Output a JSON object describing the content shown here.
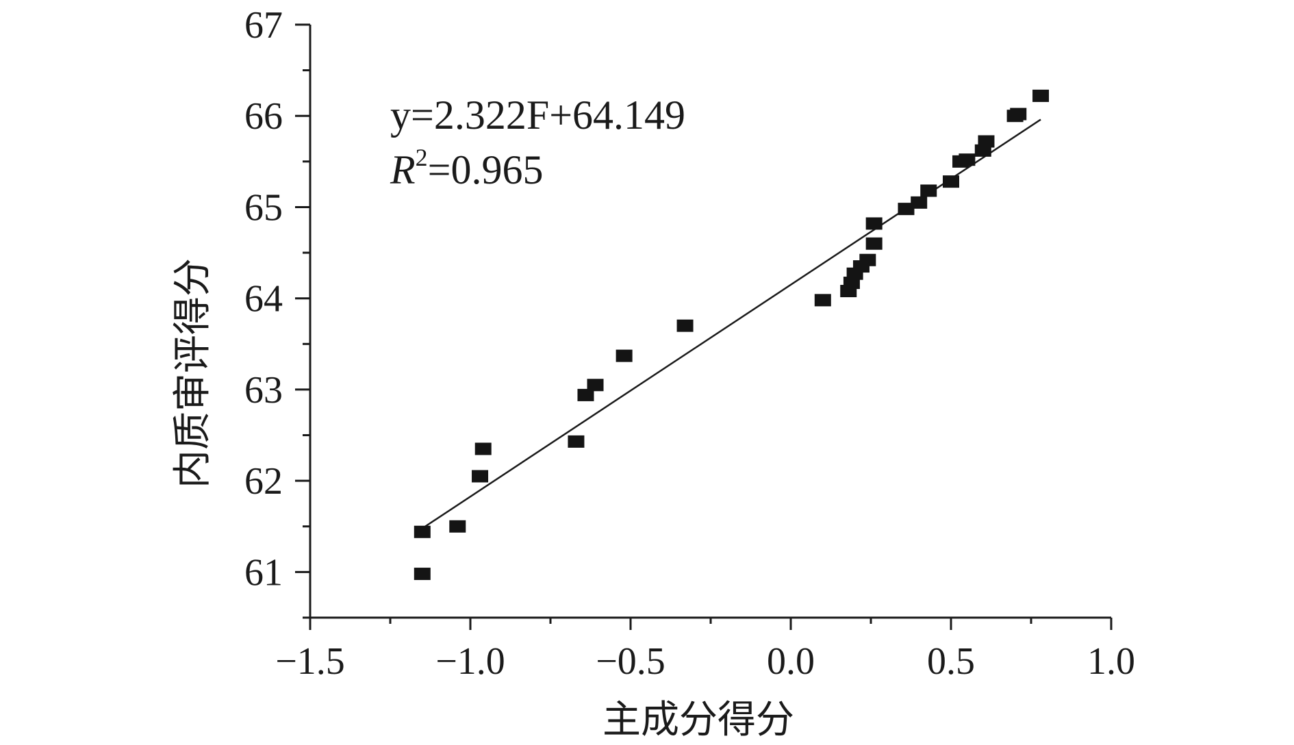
{
  "chart_data": {
    "type": "scatter",
    "title": "",
    "xlabel": "主成分得分",
    "ylabel": "内质审评得分",
    "xlim": [
      -1.5,
      1.0
    ],
    "ylim": [
      60.5,
      67
    ],
    "x_ticks": [
      -1.5,
      -1.0,
      -0.5,
      0.0,
      0.5,
      1.0
    ],
    "x_tick_labels": [
      "−1.5",
      "−1.0",
      "−0.5",
      "0.0",
      "0.5",
      "1.0"
    ],
    "y_ticks": [
      61,
      62,
      63,
      64,
      65,
      66,
      67
    ],
    "y_tick_labels": [
      "61",
      "62",
      "63",
      "64",
      "65",
      "66",
      "67"
    ],
    "grid": false,
    "marker": "square",
    "marker_color": "#141414",
    "equation_text": "y=2.322F+64.149",
    "r2_label": "R",
    "r2_sup": "2",
    "r2_value": "=0.965",
    "fit": {
      "slope": 2.322,
      "intercept": 64.149,
      "x_range": [
        -1.15,
        0.78
      ]
    },
    "points": [
      {
        "x": -1.15,
        "y": 61.44
      },
      {
        "x": -1.15,
        "y": 60.98
      },
      {
        "x": -1.04,
        "y": 61.5
      },
      {
        "x": -0.97,
        "y": 62.05
      },
      {
        "x": -0.96,
        "y": 62.35
      },
      {
        "x": -0.67,
        "y": 62.43
      },
      {
        "x": -0.64,
        "y": 62.94
      },
      {
        "x": -0.61,
        "y": 63.05
      },
      {
        "x": -0.52,
        "y": 63.37
      },
      {
        "x": -0.33,
        "y": 63.7
      },
      {
        "x": 0.1,
        "y": 63.98
      },
      {
        "x": 0.18,
        "y": 64.08
      },
      {
        "x": 0.19,
        "y": 64.17
      },
      {
        "x": 0.2,
        "y": 64.27
      },
      {
        "x": 0.22,
        "y": 64.35
      },
      {
        "x": 0.24,
        "y": 64.42
      },
      {
        "x": 0.26,
        "y": 64.6
      },
      {
        "x": 0.26,
        "y": 64.82
      },
      {
        "x": 0.36,
        "y": 64.98
      },
      {
        "x": 0.4,
        "y": 65.05
      },
      {
        "x": 0.43,
        "y": 65.18
      },
      {
        "x": 0.5,
        "y": 65.28
      },
      {
        "x": 0.53,
        "y": 65.5
      },
      {
        "x": 0.55,
        "y": 65.52
      },
      {
        "x": 0.6,
        "y": 65.62
      },
      {
        "x": 0.61,
        "y": 65.72
      },
      {
        "x": 0.7,
        "y": 66.0
      },
      {
        "x": 0.71,
        "y": 66.02
      },
      {
        "x": 0.78,
        "y": 66.22
      }
    ]
  }
}
